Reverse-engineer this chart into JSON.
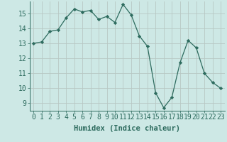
{
  "x": [
    0,
    1,
    2,
    3,
    4,
    5,
    6,
    7,
    8,
    9,
    10,
    11,
    12,
    13,
    14,
    15,
    16,
    17,
    18,
    19,
    20,
    21,
    22,
    23
  ],
  "y": [
    13.0,
    13.1,
    13.8,
    13.9,
    14.7,
    15.3,
    15.1,
    15.2,
    14.6,
    14.8,
    14.4,
    15.6,
    14.9,
    13.5,
    12.8,
    9.7,
    8.7,
    9.4,
    11.7,
    13.2,
    12.7,
    11.0,
    10.4,
    10.0
  ],
  "line_color": "#2d6b5e",
  "marker": "D",
  "marker_size": 2.2,
  "bg_color": "#cde8e5",
  "grid_color": "#b8c8c4",
  "xlabel": "Humidex (Indice chaleur)",
  "xlabel_fontsize": 7.5,
  "tick_fontsize": 7,
  "ylim": [
    8.5,
    15.8
  ],
  "xlim": [
    -0.5,
    23.5
  ],
  "yticks": [
    9,
    10,
    11,
    12,
    13,
    14,
    15
  ],
  "xticks": [
    0,
    1,
    2,
    3,
    4,
    5,
    6,
    7,
    8,
    9,
    10,
    11,
    12,
    13,
    14,
    15,
    16,
    17,
    18,
    19,
    20,
    21,
    22,
    23
  ]
}
